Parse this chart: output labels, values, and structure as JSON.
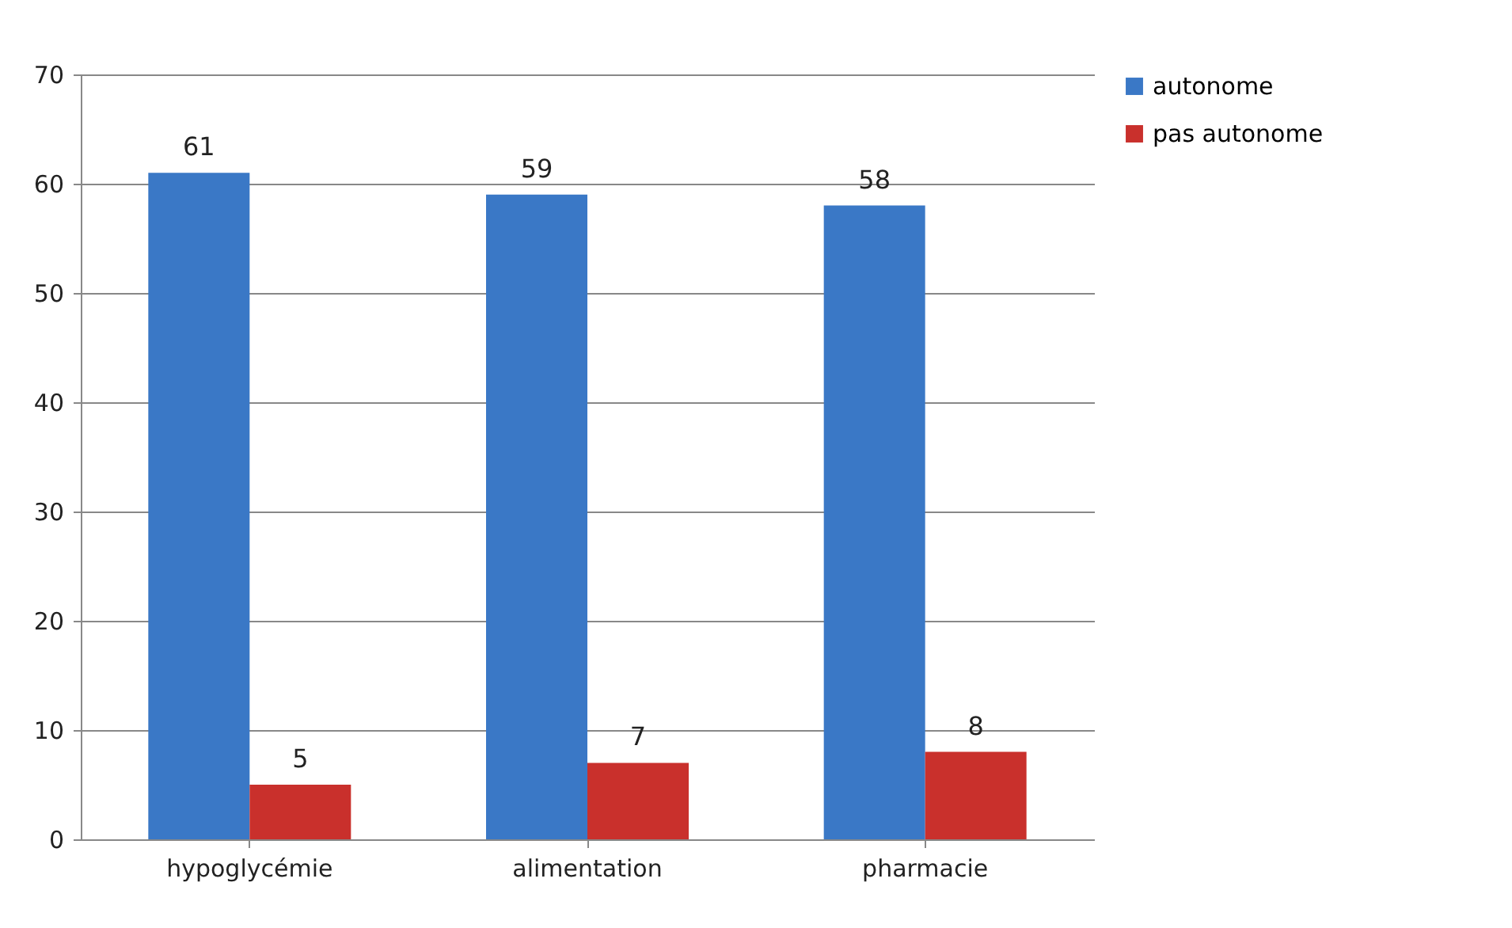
{
  "chart_data": {
    "type": "bar",
    "categories": [
      "hypoglycémie",
      "alimentation",
      "pharmacie"
    ],
    "series": [
      {
        "name": "autonome",
        "color": "#3a78c6",
        "values": [
          61,
          59,
          58
        ]
      },
      {
        "name": "pas autonome",
        "color": "#c9302c",
        "values": [
          5,
          7,
          8
        ]
      }
    ],
    "ylim": [
      0,
      70
    ],
    "yticks": [
      0,
      10,
      20,
      30,
      40,
      50,
      60,
      70
    ],
    "grid": "y",
    "legend": "right",
    "data_labels": true
  }
}
